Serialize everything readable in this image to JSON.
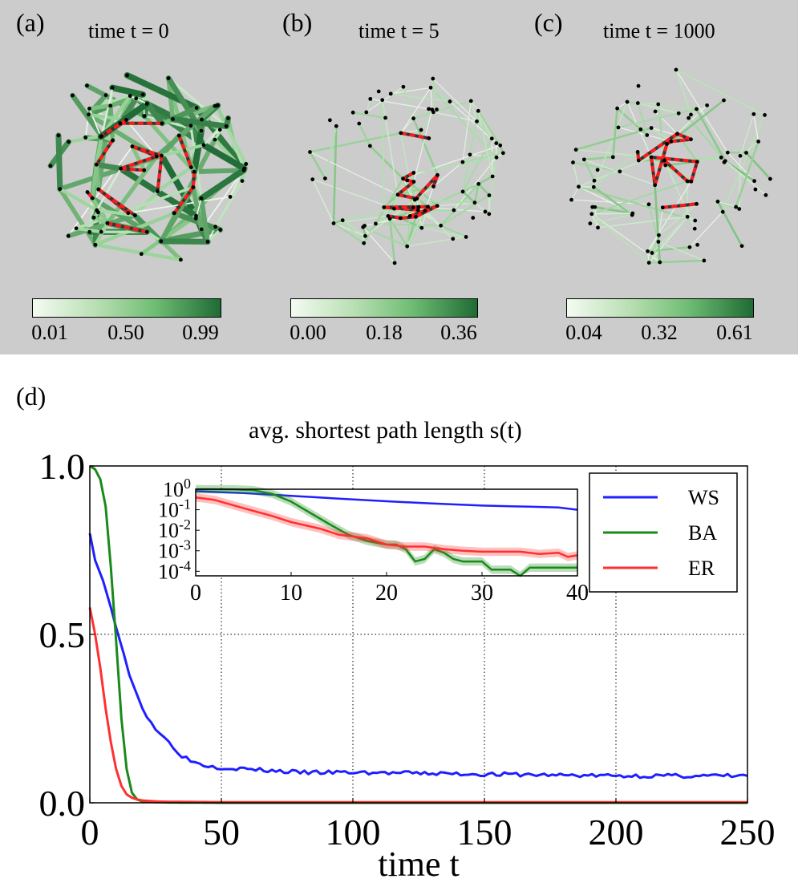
{
  "panels": [
    {
      "label": "(a)",
      "title": "time  t = 0",
      "colorbar_ticks": [
        "0.01",
        "0.50",
        "0.99"
      ]
    },
    {
      "label": "(b)",
      "title": "time t = 5",
      "colorbar_ticks": [
        "0.00",
        "0.18",
        "0.36"
      ]
    },
    {
      "label": "(c)",
      "title": "time  t = 1000",
      "colorbar_ticks": [
        "0.04",
        "0.32",
        "0.61"
      ]
    }
  ],
  "colors": {
    "panel_bg": "#cccccc",
    "edge_light": "#f4fbf2",
    "edge_dark": "#1f6b35",
    "path": "#ff1a1a",
    "WS": "#1f1fff",
    "BA": "#1a8a1a",
    "ER": "#ff3030"
  },
  "main_label": "(d)",
  "chart_data": [
    {
      "type": "line",
      "title": "avg. shortest path length s(t)",
      "xlabel": "time t",
      "ylabel": "",
      "xlim": [
        0,
        250
      ],
      "ylim": [
        0,
        1
      ],
      "xticks": [
        "0",
        "50",
        "100",
        "150",
        "200",
        "250"
      ],
      "yticks": [
        "0.0",
        "0.5",
        "1.0"
      ],
      "grid": true,
      "legend_position": "top-right",
      "series": [
        {
          "name": "WS",
          "x": [
            0,
            2,
            5,
            8,
            10,
            13,
            15,
            18,
            20,
            25,
            30,
            35,
            40,
            45,
            50,
            60,
            80,
            100,
            150,
            200,
            250
          ],
          "y": [
            0.8,
            0.72,
            0.66,
            0.58,
            0.52,
            0.44,
            0.38,
            0.32,
            0.28,
            0.22,
            0.18,
            0.14,
            0.12,
            0.11,
            0.105,
            0.1,
            0.09,
            0.09,
            0.085,
            0.08,
            0.08
          ]
        },
        {
          "name": "BA",
          "x": [
            0,
            2,
            4,
            6,
            8,
            10,
            12,
            14,
            16,
            18,
            20,
            25,
            30,
            50,
            100,
            150,
            200,
            250
          ],
          "y": [
            1.0,
            0.99,
            0.96,
            0.88,
            0.7,
            0.48,
            0.25,
            0.1,
            0.03,
            0.01,
            0.004,
            0.002,
            0.001,
            0.0,
            0.0,
            0.0,
            0.0,
            0.0
          ]
        },
        {
          "name": "ER",
          "x": [
            0,
            2,
            4,
            6,
            8,
            10,
            12,
            14,
            16,
            18,
            20,
            25,
            30,
            50,
            100,
            150,
            200,
            250
          ],
          "y": [
            0.58,
            0.5,
            0.4,
            0.28,
            0.18,
            0.1,
            0.05,
            0.025,
            0.015,
            0.01,
            0.007,
            0.004,
            0.003,
            0.002,
            0.002,
            0.002,
            0.002,
            0.002
          ]
        }
      ]
    },
    {
      "type": "line",
      "title": "",
      "xlabel": "",
      "ylabel": "",
      "xlim": [
        0,
        40
      ],
      "ylim": [
        6e-05,
        1
      ],
      "yscale": "log",
      "xticks": [
        "0",
        "10",
        "20",
        "30",
        "40"
      ],
      "ytick_values": [
        1,
        0.1,
        0.01,
        0.001,
        0.0001
      ],
      "yticks": [
        "10^0",
        "10^-1",
        "10^-2",
        "10^-3",
        "10^-4"
      ],
      "series": [
        {
          "name": "WS",
          "x": [
            0,
            5,
            10,
            15,
            20,
            25,
            30,
            35,
            38,
            40
          ],
          "y": [
            0.8,
            0.65,
            0.48,
            0.35,
            0.26,
            0.2,
            0.16,
            0.14,
            0.13,
            0.1
          ]
        },
        {
          "name": "BA",
          "x": [
            0,
            4,
            6,
            8,
            10,
            12,
            14,
            16,
            18,
            20,
            21,
            22,
            23,
            24,
            25,
            26,
            27,
            28,
            30,
            31,
            32,
            33,
            34,
            35,
            36,
            38,
            40
          ],
          "y": [
            1.0,
            0.98,
            0.9,
            0.6,
            0.25,
            0.07,
            0.02,
            0.006,
            0.003,
            0.002,
            0.002,
            0.0012,
            0.0003,
            0.0004,
            0.0012,
            0.0008,
            0.0004,
            0.0003,
            0.0003,
            0.00012,
            0.00012,
            0.00012,
            6e-05,
            0.00015,
            0.00015,
            0.00015,
            0.00015
          ]
        },
        {
          "name": "ER",
          "x": [
            0,
            2,
            5,
            8,
            10,
            13,
            15,
            18,
            20,
            22,
            24,
            26,
            28,
            30,
            32,
            34,
            36,
            38,
            39,
            40
          ],
          "y": [
            0.4,
            0.3,
            0.12,
            0.05,
            0.025,
            0.012,
            0.006,
            0.004,
            0.002,
            0.0016,
            0.0016,
            0.0012,
            0.001,
            0.0009,
            0.0009,
            0.0009,
            0.0007,
            0.0008,
            0.0005,
            0.0006
          ]
        }
      ]
    }
  ]
}
